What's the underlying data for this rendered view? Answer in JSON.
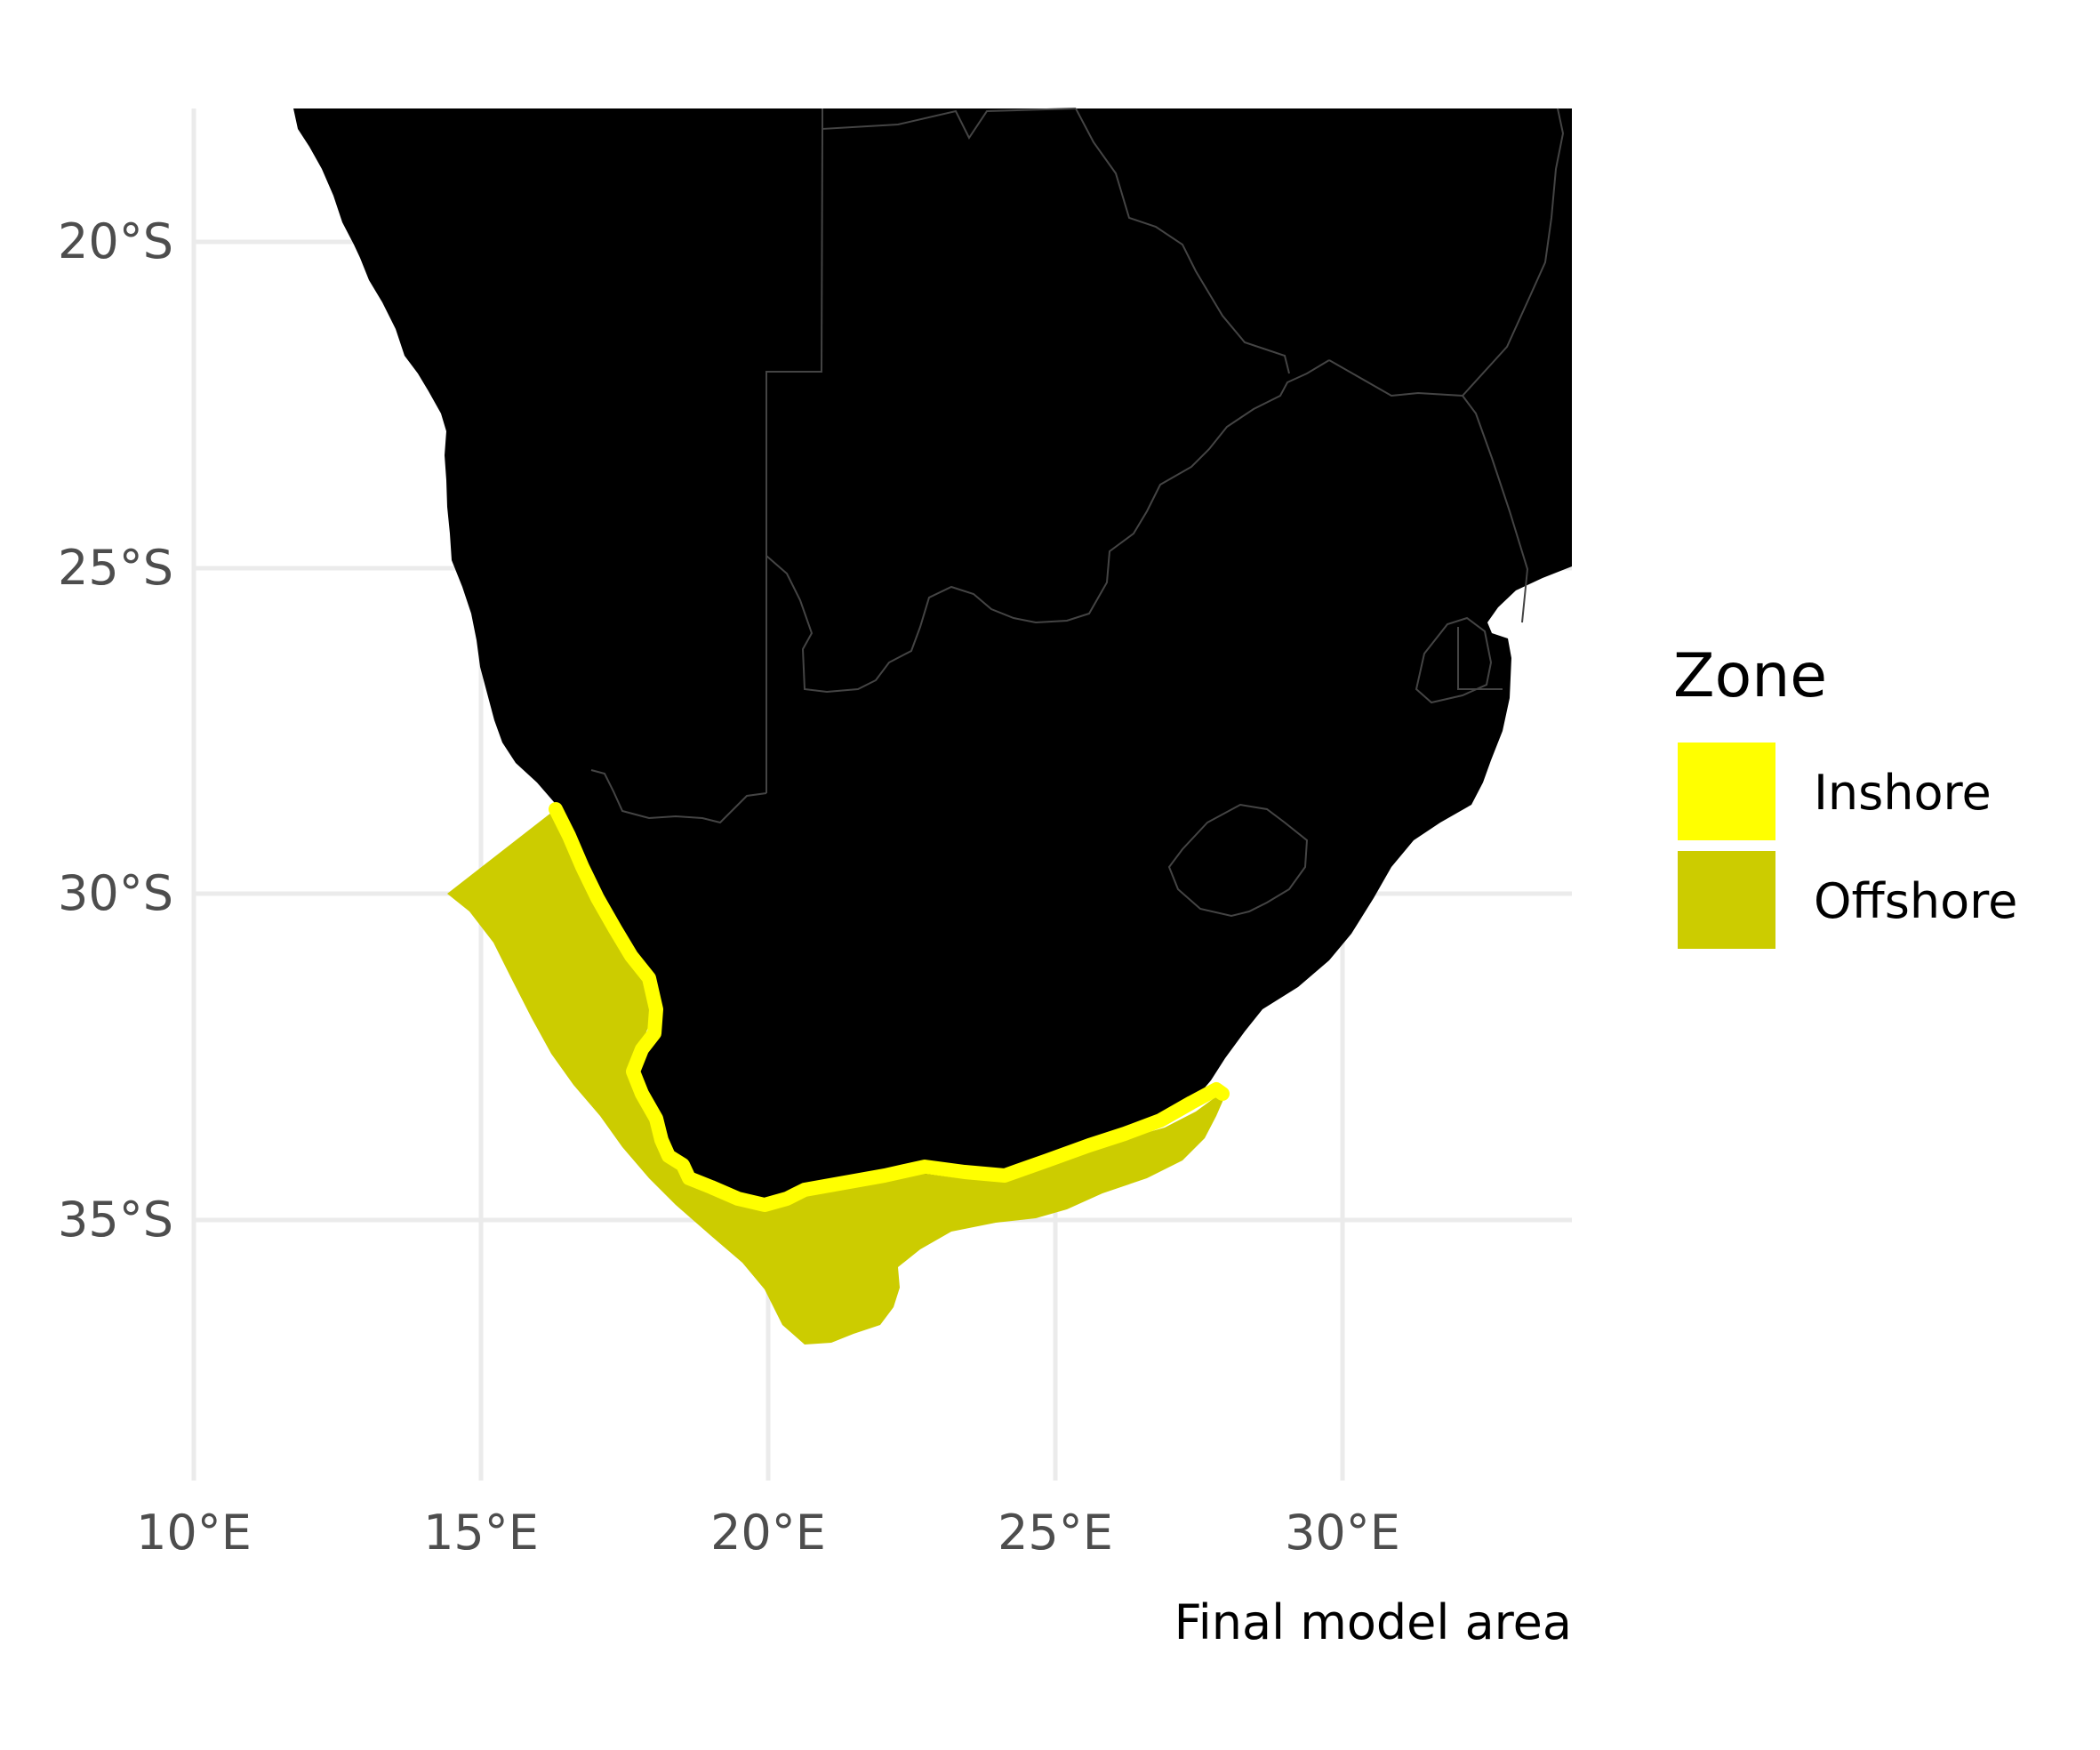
{
  "map": {
    "caption": "Final model area",
    "x_axis": {
      "ticks": [
        "10°E",
        "15°E",
        "20°E",
        "25°E",
        "30°E"
      ],
      "values": [
        10,
        15,
        20,
        25,
        30
      ]
    },
    "y_axis": {
      "ticks": [
        "20°S",
        "25°S",
        "30°S",
        "35°S"
      ],
      "values": [
        -20,
        -25,
        -30,
        -35
      ]
    },
    "extent": {
      "lon": [
        10,
        34
      ],
      "lat": [
        -38.3,
        -17.3
      ]
    },
    "land_color": "#000000",
    "border_color": "#444444",
    "grid": true
  },
  "legend": {
    "title": "Zone",
    "items": [
      {
        "label": "Inshore",
        "color": "#ffff00"
      },
      {
        "label": "Offshore",
        "color": "#cccc00"
      }
    ]
  }
}
